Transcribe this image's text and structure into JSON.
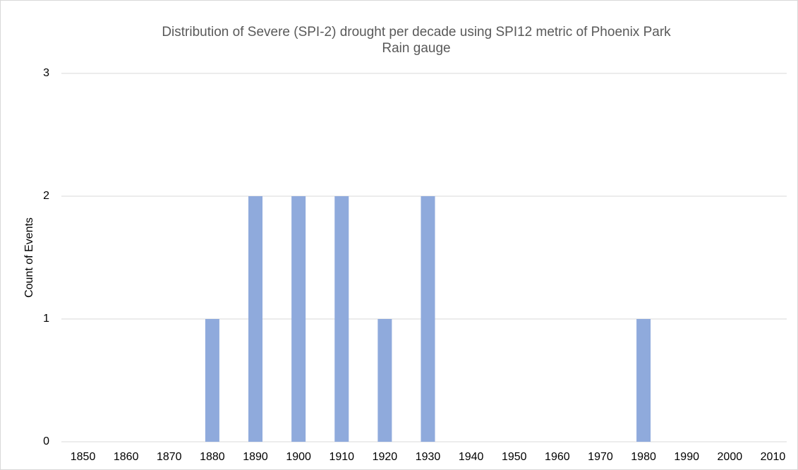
{
  "chart_data": {
    "type": "bar",
    "title": "Distribution of Severe (SPI-2) drought per decade using SPI12 metric of Phoenix Park Rain gauge",
    "y_label": "Count of Events",
    "categories": [
      "1850",
      "1860",
      "1870",
      "1880",
      "1890",
      "1900",
      "1910",
      "1920",
      "1930",
      "1940",
      "1950",
      "1960",
      "1970",
      "1980",
      "1990",
      "2000",
      "2010"
    ],
    "values": [
      0,
      0,
      0,
      1,
      2,
      2,
      2,
      1,
      2,
      0,
      0,
      0,
      0,
      1,
      0,
      0,
      0
    ],
    "color": "#8faadc",
    "ylim": [
      0,
      3
    ],
    "yticks": [
      0,
      1,
      2,
      3
    ],
    "grid": true
  }
}
